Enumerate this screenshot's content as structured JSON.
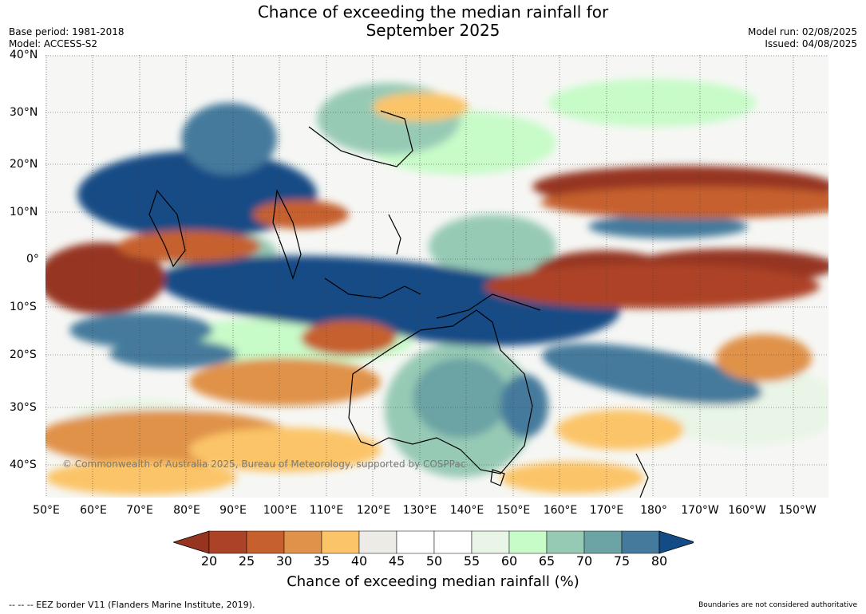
{
  "title_line1": "Chance of exceeding the median rainfall for",
  "title_line2": "September 2025",
  "base_period": "Base period: 1981-2018",
  "model": "Model: ACCESS-S2",
  "model_run": "Model run: 02/08/2025",
  "issued": "Issued: 04/08/2025",
  "lat_labels": [
    "40°N",
    "30°N",
    "20°N",
    "10°N",
    "0°",
    "10°S",
    "20°S",
    "30°S",
    "40°S"
  ],
  "lon_labels": [
    "50°E",
    "60°E",
    "70°E",
    "80°E",
    "90°E",
    "100°E",
    "110°E",
    "120°E",
    "130°E",
    "140°E",
    "150°E",
    "160°E",
    "170°E",
    "180°",
    "170°W",
    "160°W",
    "150°W"
  ],
  "copyright": "© Commonwealth of Australia 2025, Bureau of Meteorology, supported by COSPPac",
  "colorbar": {
    "ticks": [
      "20",
      "25",
      "30",
      "35",
      "40",
      "45",
      "50",
      "55",
      "60",
      "65",
      "70",
      "75",
      "80"
    ],
    "colors": [
      "#963420",
      "#ad4326",
      "#c6602f",
      "#e0924a",
      "#fbc468",
      "#ecebe6",
      "#ffffff",
      "#ffffff",
      "#e9f5e6",
      "#c7fbc8",
      "#97cab5",
      "#6ca3a4",
      "#457a9c",
      "#124b85"
    ],
    "label": "Chance of exceeding median rainfall (%)"
  },
  "eez_note": "-- -- -- EEZ border V11 (Flanders Marine Institute, 2019).",
  "authority_note": "Boundaries are not considered authoritative"
}
